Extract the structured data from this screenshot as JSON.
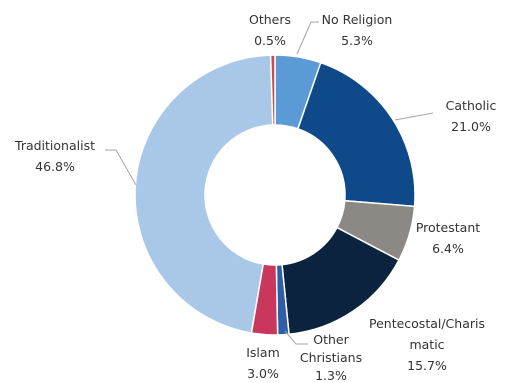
{
  "chart_data": {
    "type": "pie",
    "variant": "donut",
    "title": "",
    "slices": [
      {
        "label": "No Religion",
        "value": 5.3,
        "value_label": "5.3%",
        "color": "#5b9bd5"
      },
      {
        "label": "Catholic",
        "value": 21.0,
        "value_label": "21.0%",
        "color": "#0e4a8a"
      },
      {
        "label": "Protestant",
        "value": 6.4,
        "value_label": "6.4%",
        "color": "#8c8883"
      },
      {
        "label": "Pentecostal/Charis matic",
        "value": 15.7,
        "value_label": "15.7%",
        "color": "#0c2340"
      },
      {
        "label": "Other Christians",
        "value": 1.3,
        "value_label": "1.3%",
        "color": "#2e5ea8"
      },
      {
        "label": "Islam",
        "value": 3.0,
        "value_label": "3.0%",
        "color": "#c9385c"
      },
      {
        "label": "Traditionalist",
        "value": 46.8,
        "value_label": "46.8%",
        "color": "#a9c8e8"
      },
      {
        "label": "Others",
        "value": 0.5,
        "value_label": "0.5%",
        "color": "#c0504d"
      }
    ],
    "legend": "none",
    "data_labels": "outside"
  }
}
